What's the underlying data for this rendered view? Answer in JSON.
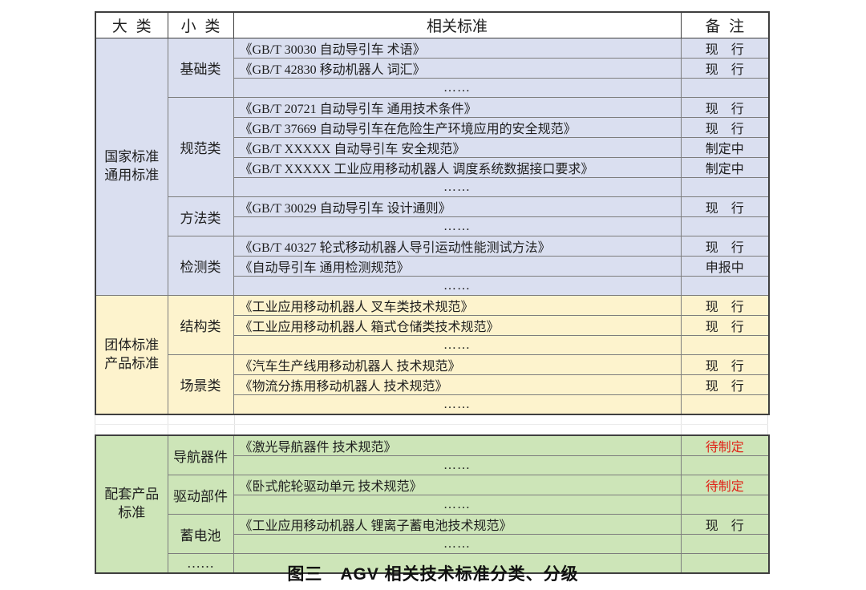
{
  "caption": "图三　AGV 相关技术标准分类、分级",
  "colors": {
    "national_bg": "#dadff0",
    "group_bg": "#fdf3cd",
    "supporting_bg": "#cde5b8",
    "pending_red": "#e02419",
    "border_dark": "#3f3f3f",
    "border_inner": "#7d7d7d",
    "gap_grid": "#e3e3e3"
  },
  "table": {
    "headers": [
      "大 类",
      "小 类",
      "相关标准",
      "备 注"
    ],
    "sections": [
      {
        "block": "a",
        "major": "国家标准\n通用标准",
        "bg": "#dadff0",
        "groups": [
          {
            "sub": "基础类",
            "rows": [
              {
                "std": "《GB/T 30030 自动导引车 术语》",
                "note": "现　行"
              },
              {
                "std": "《GB/T 42830 移动机器人 词汇》",
                "note": "现　行"
              },
              {
                "std": "……",
                "note": "",
                "center": true
              }
            ]
          },
          {
            "sub": "规范类",
            "rows": [
              {
                "std": "《GB/T 20721 自动导引车 通用技术条件》",
                "note": "现　行"
              },
              {
                "std": "《GB/T 37669 自动导引车在危险生产环境应用的安全规范》",
                "note": "现　行"
              },
              {
                "std": "《GB/T XXXXX 自动导引车 安全规范》",
                "note": "制定中"
              },
              {
                "std": "《GB/T XXXXX 工业应用移动机器人 调度系统数据接口要求》",
                "note": "制定中"
              },
              {
                "std": "……",
                "note": "",
                "center": true
              }
            ]
          },
          {
            "sub": "方法类",
            "rows": [
              {
                "std": "《GB/T 30029 自动导引车 设计通则》",
                "note": "现　行"
              },
              {
                "std": "……",
                "note": "",
                "center": true
              }
            ]
          },
          {
            "sub": "检测类",
            "rows": [
              {
                "std": "《GB/T 40327 轮式移动机器人导引运动性能测试方法》",
                "note": "现　行"
              },
              {
                "std": "《自动导引车 通用检测规范》",
                "note": "申报中"
              },
              {
                "std": "……",
                "note": "",
                "center": true
              }
            ]
          }
        ]
      },
      {
        "block": "a",
        "major": "团体标准\n产品标准",
        "bg": "#fdf3cd",
        "groups": [
          {
            "sub": "结构类",
            "rows": [
              {
                "std": "《工业应用移动机器人 叉车类技术规范》",
                "note": "现　行"
              },
              {
                "std": "《工业应用移动机器人 箱式仓储类技术规范》",
                "note": "现　行"
              },
              {
                "std": "……",
                "note": "",
                "center": true
              }
            ]
          },
          {
            "sub": "场景类",
            "rows": [
              {
                "std": "《汽车生产线用移动机器人 技术规范》",
                "note": "现　行"
              },
              {
                "std": "《物流分拣用移动机器人 技术规范》",
                "note": "现　行"
              },
              {
                "std": "……",
                "note": "",
                "center": true
              }
            ]
          }
        ]
      },
      {
        "block": "b",
        "major": "配套产品\n标准",
        "bg": "#cde5b8",
        "groups": [
          {
            "sub": "导航器件",
            "rows": [
              {
                "std": "《激光导航器件 技术规范》",
                "note": "待制定",
                "red": true
              },
              {
                "std": "……",
                "note": "",
                "center": true
              }
            ]
          },
          {
            "sub": "驱动部件",
            "rows": [
              {
                "std": "《卧式舵轮驱动单元 技术规范》",
                "note": "待制定",
                "red": true
              },
              {
                "std": "……",
                "note": "",
                "center": true
              }
            ]
          },
          {
            "sub": "蓄电池",
            "rows": [
              {
                "std": "《工业应用移动机器人 锂离子蓄电池技术规范》",
                "note": "现　行"
              },
              {
                "std": "……",
                "note": "",
                "center": true
              }
            ]
          },
          {
            "sub": "……",
            "rows": [
              {
                "std": "",
                "note": ""
              }
            ]
          }
        ]
      }
    ]
  }
}
